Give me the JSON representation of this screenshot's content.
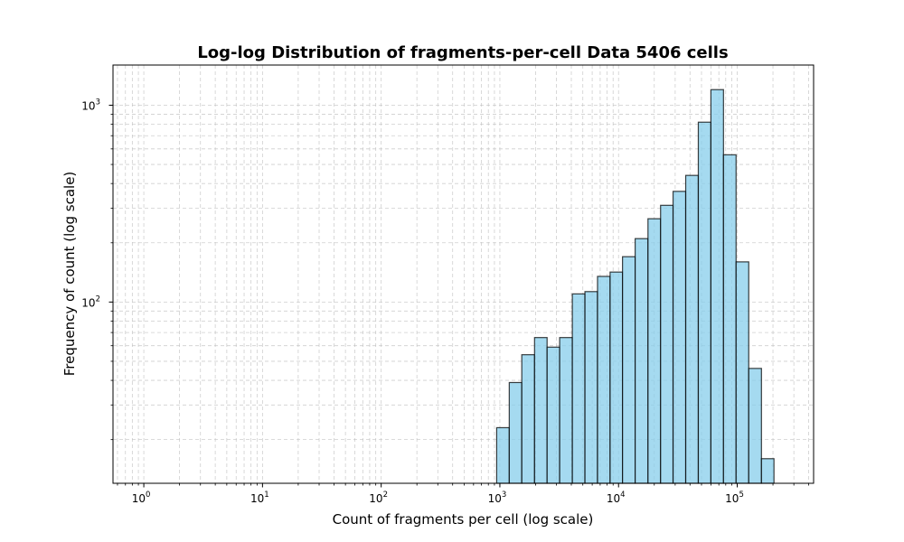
{
  "chart_data": {
    "type": "bar",
    "title": "Log-log Distribution of fragments-per-cell Data 5406 cells",
    "xlabel": "Count of fragments per cell (log scale)",
    "ylabel": "Frequency of count (log scale)",
    "xscale": "log",
    "yscale": "log",
    "xlim": [
      0.55,
      440000
    ],
    "ylim": [
      12,
      1600
    ],
    "grid": true,
    "bar_color": "#87CEEB",
    "edge_color": "#000000",
    "x_ticks": [
      {
        "base": "10",
        "exp": "0",
        "value": 1
      },
      {
        "base": "10",
        "exp": "1",
        "value": 10
      },
      {
        "base": "10",
        "exp": "2",
        "value": 100
      },
      {
        "base": "10",
        "exp": "3",
        "value": 1000
      },
      {
        "base": "10",
        "exp": "4",
        "value": 10000
      },
      {
        "base": "10",
        "exp": "5",
        "value": 100000
      }
    ],
    "y_ticks": [
      {
        "base": "10",
        "exp": "2",
        "value": 100
      },
      {
        "base": "10",
        "exp": "3",
        "value": 1000
      }
    ],
    "bin_edges": [
      940,
      1200,
      1530,
      1960,
      2500,
      3190,
      4080,
      5210,
      6650,
      8490,
      10800,
      13800,
      17700,
      22600,
      28800,
      36800,
      47000,
      60000,
      76600,
      97800,
      125000,
      160000,
      204000,
      260000
    ],
    "counts": [
      23,
      39,
      54,
      66,
      59,
      66,
      110,
      113,
      135,
      142,
      170,
      210,
      265,
      310,
      365,
      440,
      820,
      1200,
      560,
      160,
      46,
      16,
      0
    ]
  }
}
